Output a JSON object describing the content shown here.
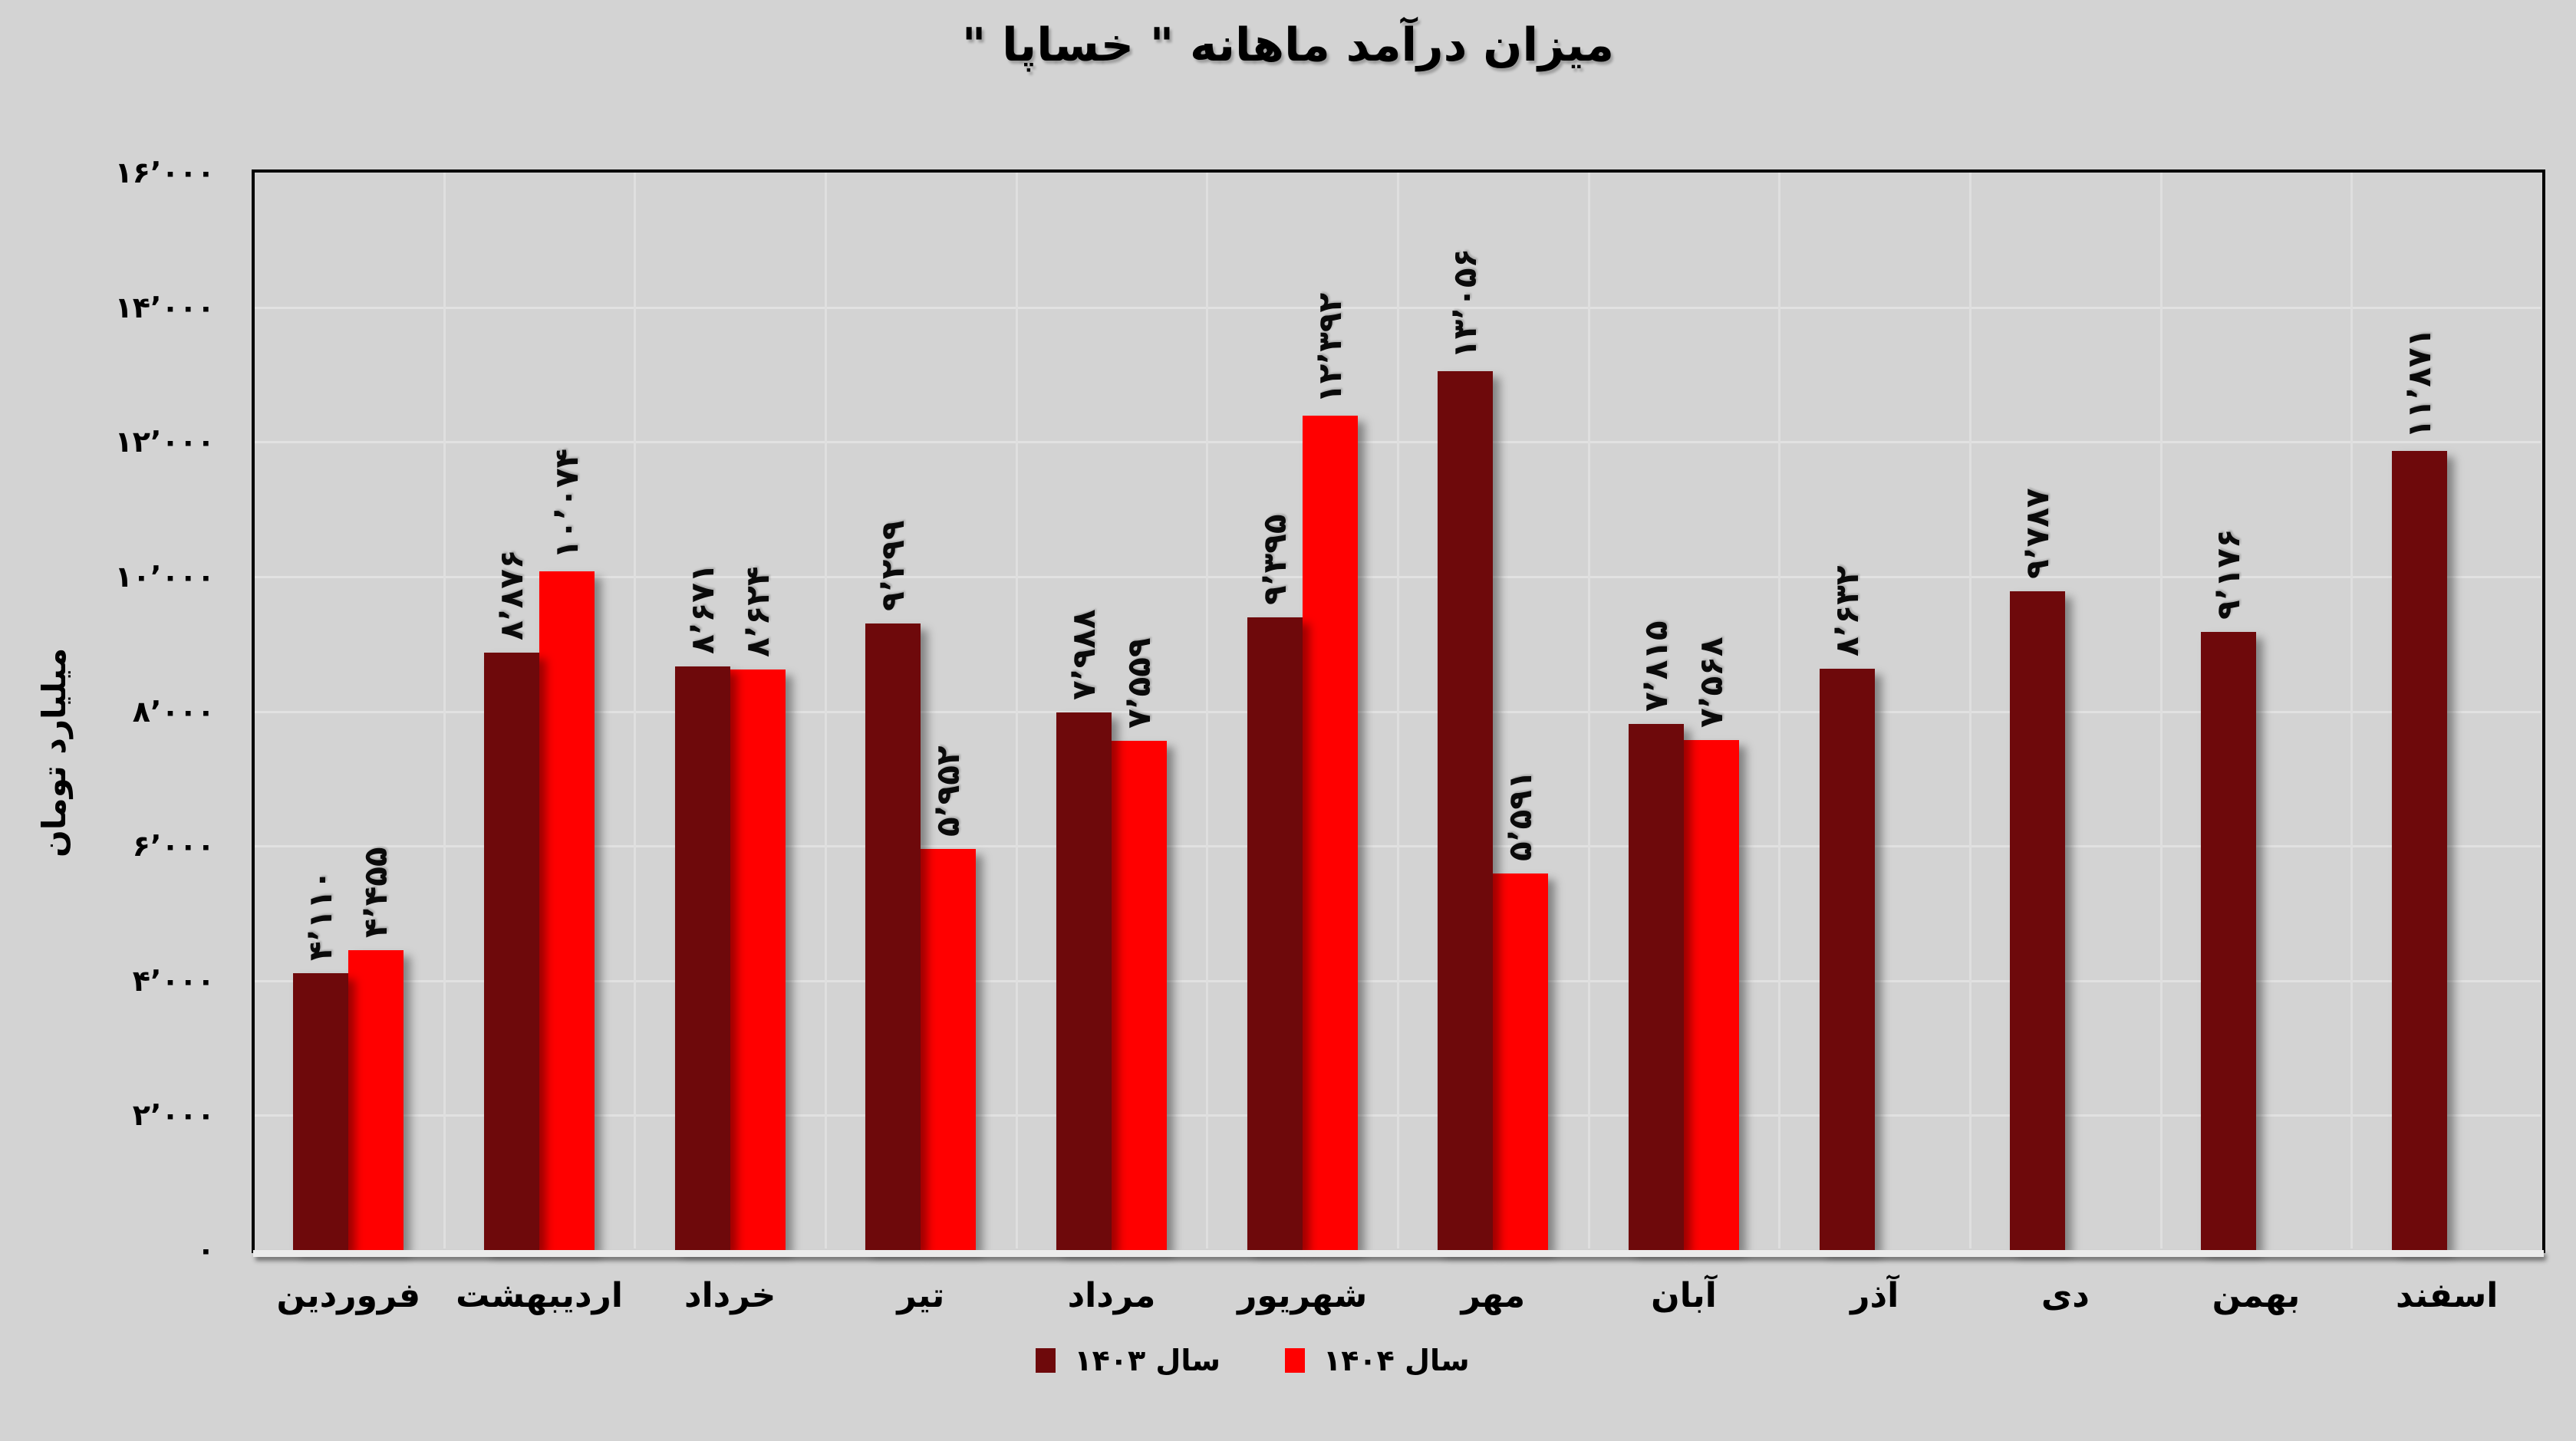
{
  "background_color": "#d3d3d3",
  "chart_data": {
    "type": "bar",
    "title": "میزان درآمد ماهانه \" خساپا \"",
    "xlabel": "",
    "ylabel": "میلیارد تومان",
    "ylim": [
      0,
      16000
    ],
    "grid": true,
    "legend_position": "bottom",
    "plot_border_color": "#000000",
    "grid_color": "#e1e1e1",
    "categories": [
      "فروردین",
      "اردیبهشت",
      "خرداد",
      "تیر",
      "مرداد",
      "شهریور",
      "مهر",
      "آبان",
      "آذر",
      "دی",
      "بهمن",
      "اسفند"
    ],
    "yticks": [
      {
        "value": 0,
        "label": "۰"
      },
      {
        "value": 2000,
        "label": "۲٬۰۰۰"
      },
      {
        "value": 4000,
        "label": "۴٬۰۰۰"
      },
      {
        "value": 6000,
        "label": "۶٬۰۰۰"
      },
      {
        "value": 8000,
        "label": "۸٬۰۰۰"
      },
      {
        "value": 10000,
        "label": "۱۰٬۰۰۰"
      },
      {
        "value": 12000,
        "label": "۱۲٬۰۰۰"
      },
      {
        "value": 14000,
        "label": "۱۴٬۰۰۰"
      },
      {
        "value": 16000,
        "label": "۱۶٬۰۰۰"
      }
    ],
    "series": [
      {
        "name": "سال ۱۴۰۳",
        "color": "#6e090b",
        "values": [
          4110,
          8876,
          8671,
          9299,
          7988,
          9395,
          13056,
          7815,
          8632,
          9787,
          9176,
          11871
        ],
        "labels": [
          "۴٬۱۱۰",
          "۸٬۸۷۶",
          "۸٬۶۷۱",
          "۹٬۲۹۹",
          "۷٬۹۸۸",
          "۹٬۳۹۵",
          "۱۳٬۰۵۶",
          "۷٬۸۱۵",
          "۸٬۶۳۲",
          "۹٬۷۸۷",
          "۹٬۱۷۶",
          "۱۱٬۸۷۱"
        ]
      },
      {
        "name": "سال ۱۴۰۴",
        "color": "#ff0000",
        "values": [
          4455,
          10074,
          8624,
          5952,
          7559,
          12392,
          5591,
          7568,
          null,
          null,
          null,
          null
        ],
        "labels": [
          "۴٬۴۵۵",
          "۱۰٬۰۷۴",
          "۸٬۶۲۴",
          "۵٬۹۵۲",
          "۷٬۵۵۹",
          "۱۲٬۳۹۲",
          "۵٬۵۹۱",
          "۷٬۵۶۸",
          null,
          null,
          null,
          null
        ]
      }
    ]
  }
}
